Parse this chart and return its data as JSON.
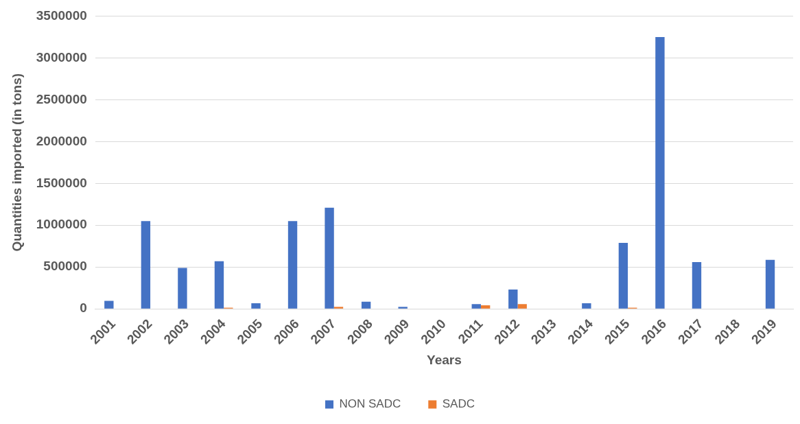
{
  "chart_data": {
    "type": "bar",
    "xlabel": "Years",
    "ylabel": "Quantities imported (in tons)",
    "categories": [
      "2001",
      "2002",
      "2003",
      "2004",
      "2005",
      "2006",
      "2007",
      "2008",
      "2009",
      "2010",
      "2011",
      "2012",
      "2013",
      "2014",
      "2015",
      "2016",
      "2017",
      "2018",
      "2019"
    ],
    "series": [
      {
        "name": "NON SADC",
        "color": "#4472c4",
        "values": [
          95000,
          1050000,
          490000,
          570000,
          68000,
          1050000,
          1210000,
          85000,
          25000,
          null,
          57000,
          232000,
          null,
          68000,
          788000,
          3250000,
          559000,
          null,
          585000
        ]
      },
      {
        "name": "SADC",
        "color": "#ed7d31",
        "values": [
          null,
          null,
          null,
          14000,
          null,
          null,
          25000,
          null,
          null,
          null,
          42000,
          57000,
          null,
          null,
          14000,
          null,
          null,
          null,
          null
        ]
      }
    ],
    "ylim": [
      0,
      3500000
    ],
    "yticks": [
      0,
      500000,
      1000000,
      1500000,
      2000000,
      2500000,
      3000000,
      3500000
    ],
    "grid": "y",
    "legend": "bottom"
  }
}
